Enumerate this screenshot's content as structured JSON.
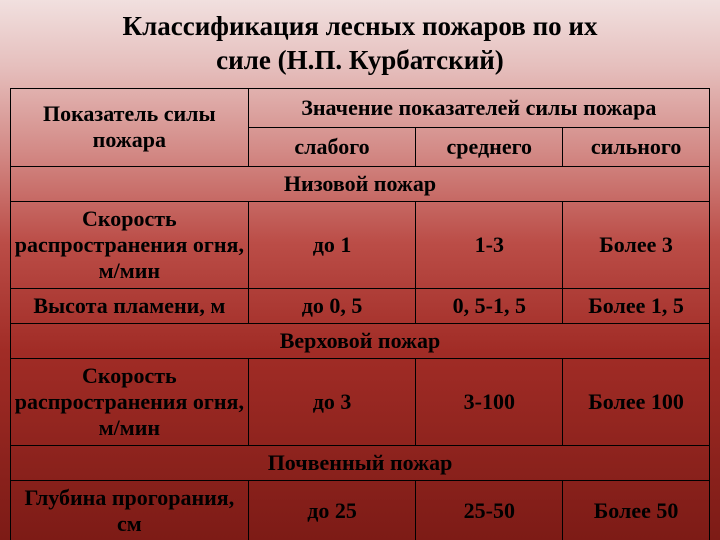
{
  "title_line1": "Классификация лесных пожаров по их",
  "title_line2": "силе (Н.П. Курбатский)",
  "header": {
    "indicator": "Показатель силы пожара",
    "merged": "Значение показателей силы пожара",
    "weak": "слабого",
    "medium": "среднего",
    "strong": "сильного"
  },
  "sections": {
    "ground": "Низовой пожар",
    "crown": "Верховой пожар",
    "soil": "Почвенный пожар"
  },
  "rows": {
    "ground_speed": {
      "label": "Скорость распространения огня, м/мин",
      "weak": "до 1",
      "medium": "1-3",
      "strong": "Более 3"
    },
    "ground_flame": {
      "label": "Высота пламени, м",
      "weak": "до 0, 5",
      "medium": "0, 5-1, 5",
      "strong": "Более 1, 5"
    },
    "crown_speed": {
      "label": "Скорость распространения огня, м/мин",
      "weak": "до 3",
      "medium": "3-100",
      "strong": "Более 100"
    },
    "soil_depth": {
      "label": "Глубина прогорания, см",
      "weak": "до 25",
      "medium": "25-50",
      "strong": "Более 50"
    }
  }
}
